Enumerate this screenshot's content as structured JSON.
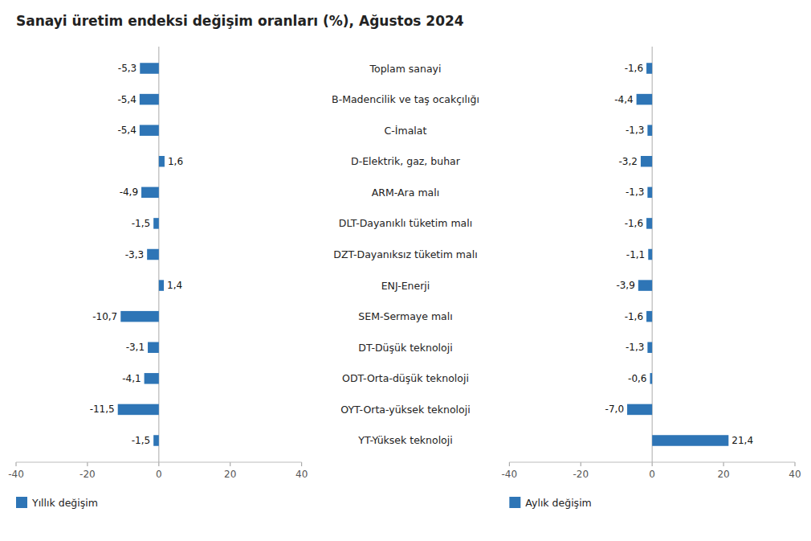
{
  "chart_data": {
    "type": "bar",
    "orientation": "horizontal",
    "title": "Sanayi üretim endeksi değişim oranları (%), Ağustos 2024",
    "categories": [
      "Toplam sanayi",
      "B-Madencilik ve taş ocakçılığı",
      "C-İmalat",
      "D-Elektrik, gaz, buhar",
      "ARM-Ara malı",
      "DLT-Dayanıklı tüketim malı",
      "DZT-Dayanıksız tüketim malı",
      "ENJ-Enerji",
      "SEM-Sermaye malı",
      "DT-Düşük teknoloji",
      "ODT-Orta-düşük teknoloji",
      "OYT-Orta-yüksek teknoloji",
      "YT-Yüksek teknoloji"
    ],
    "series": [
      {
        "name": "Yıllık değişim",
        "color": "#2e75b6",
        "values": [
          -5.3,
          -5.4,
          -5.4,
          1.6,
          -4.9,
          -1.5,
          -3.3,
          1.4,
          -10.7,
          -3.1,
          -4.1,
          -11.5,
          -1.5
        ],
        "value_labels": [
          "-5,3",
          "-5,4",
          "-5,4",
          "1,6",
          "-4,9",
          "-1,5",
          "-3,3",
          "1,4",
          "-10,7",
          "-3,1",
          "-4,1",
          "-11,5",
          "-1,5"
        ]
      },
      {
        "name": "Aylık değişim",
        "color": "#2e75b6",
        "values": [
          -1.6,
          -4.4,
          -1.3,
          -3.2,
          -1.3,
          -1.6,
          -1.1,
          -3.9,
          -1.6,
          -1.3,
          -0.6,
          -7.0,
          21.4
        ],
        "value_labels": [
          "-1,6",
          "-4,4",
          "-1,3",
          "-3,2",
          "-1,3",
          "-1,6",
          "-1,1",
          "-3,9",
          "-1,6",
          "-1,3",
          "-0,6",
          "-7,0",
          "21,4"
        ]
      }
    ],
    "xlim": [
      -40,
      40
    ],
    "xticks": [
      -40,
      -20,
      0,
      20,
      40
    ],
    "grid": false,
    "legend": "lower left",
    "data_labels": true
  }
}
